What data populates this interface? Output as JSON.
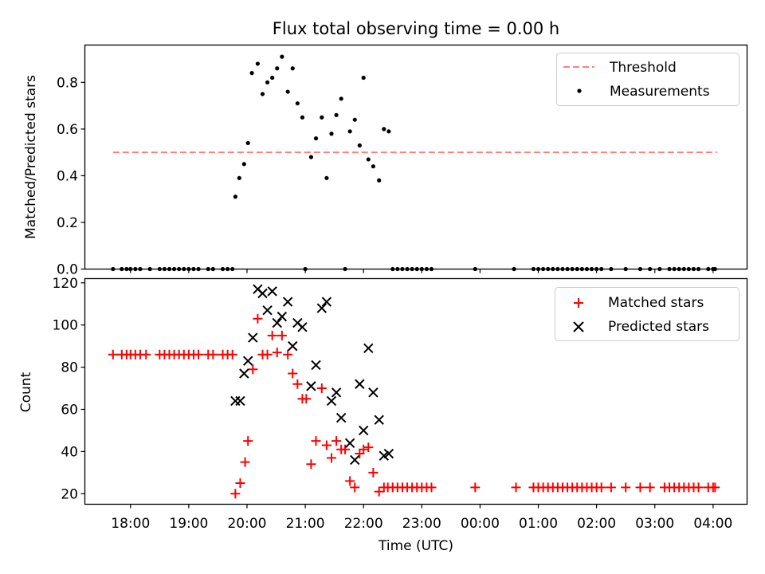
{
  "chart_data": [
    {
      "type": "scatter",
      "title": "Flux total observing time = 0.00 h",
      "xlabel": "",
      "ylabel": "Matched/Predicted stars",
      "x_is_time": true,
      "xlim": [
        "17:13",
        "04:35"
      ],
      "ylim": [
        0,
        0.96
      ],
      "yticks": [
        0.0,
        0.2,
        0.4,
        0.6,
        0.8
      ],
      "ytick_labels": [
        "0.0",
        "0.2",
        "0.4",
        "0.6",
        "0.8"
      ],
      "threshold": {
        "name": "Threshold",
        "value": 0.5,
        "x_range": [
          "17:42",
          "04:04"
        ],
        "color": "#ff7f7f",
        "style": "dashed"
      },
      "legend": {
        "position": "top-right",
        "entries": [
          "Threshold",
          "Measurements"
        ]
      },
      "series": [
        {
          "name": "Measurements",
          "marker": "dot",
          "color": "#000000",
          "points": [
            [
              "17:42",
              0
            ],
            [
              "17:51",
              0
            ],
            [
              "17:56",
              0
            ],
            [
              "18:00",
              0
            ],
            [
              "18:05",
              0
            ],
            [
              "18:10",
              0
            ],
            [
              "18:20",
              0
            ],
            [
              "18:30",
              0
            ],
            [
              "18:35",
              0
            ],
            [
              "18:40",
              0
            ],
            [
              "18:45",
              0
            ],
            [
              "18:50",
              0
            ],
            [
              "18:55",
              0
            ],
            [
              "19:00",
              0
            ],
            [
              "19:05",
              0
            ],
            [
              "19:10",
              0
            ],
            [
              "19:20",
              0
            ],
            [
              "19:25",
              0
            ],
            [
              "19:35",
              0
            ],
            [
              "19:40",
              0
            ],
            [
              "19:45",
              0
            ],
            [
              "19:48",
              0.31
            ],
            [
              "19:52",
              0.39
            ],
            [
              "19:57",
              0.45
            ],
            [
              "20:01",
              0.54
            ],
            [
              "20:05",
              0.84
            ],
            [
              "20:11",
              0.88
            ],
            [
              "20:16",
              0.75
            ],
            [
              "20:21",
              0.8
            ],
            [
              "20:26",
              0.82
            ],
            [
              "20:31",
              0.86
            ],
            [
              "20:36",
              0.91
            ],
            [
              "20:42",
              0.76
            ],
            [
              "20:47",
              0.86
            ],
            [
              "20:52",
              0.71
            ],
            [
              "20:57",
              0.65
            ],
            [
              "21:06",
              0.48
            ],
            [
              "21:11",
              0.56
            ],
            [
              "21:17",
              0.65
            ],
            [
              "21:22",
              0.39
            ],
            [
              "21:27",
              0.58
            ],
            [
              "21:32",
              0.66
            ],
            [
              "21:37",
              0.73
            ],
            [
              "21:46",
              0.59
            ],
            [
              "21:51",
              0.64
            ],
            [
              "21:56",
              0.53
            ],
            [
              "22:00",
              0.82
            ],
            [
              "22:05",
              0.47
            ],
            [
              "22:10",
              0.44
            ],
            [
              "22:16",
              0.38
            ],
            [
              "22:21",
              0.6
            ],
            [
              "22:26",
              0.59
            ],
            [
              "21:00",
              0
            ],
            [
              "21:41",
              0
            ],
            [
              "22:30",
              0
            ],
            [
              "22:35",
              0
            ],
            [
              "22:40",
              0
            ],
            [
              "22:45",
              0
            ],
            [
              "22:50",
              0
            ],
            [
              "22:55",
              0
            ],
            [
              "23:00",
              0
            ],
            [
              "23:05",
              0
            ],
            [
              "23:10",
              0
            ],
            [
              "23:55",
              0
            ],
            [
              "00:35",
              0
            ],
            [
              "00:55",
              0
            ],
            [
              "01:00",
              0
            ],
            [
              "01:05",
              0
            ],
            [
              "01:10",
              0
            ],
            [
              "01:15",
              0
            ],
            [
              "01:20",
              0
            ],
            [
              "01:25",
              0
            ],
            [
              "01:30",
              0
            ],
            [
              "01:35",
              0
            ],
            [
              "01:40",
              0
            ],
            [
              "01:45",
              0
            ],
            [
              "01:50",
              0
            ],
            [
              "01:55",
              0
            ],
            [
              "02:00",
              0
            ],
            [
              "02:05",
              0
            ],
            [
              "02:15",
              0
            ],
            [
              "02:30",
              0
            ],
            [
              "02:45",
              0
            ],
            [
              "02:55",
              0
            ],
            [
              "03:05",
              0
            ],
            [
              "03:15",
              0
            ],
            [
              "03:20",
              0
            ],
            [
              "03:25",
              0
            ],
            [
              "03:30",
              0
            ],
            [
              "03:35",
              0
            ],
            [
              "03:40",
              0
            ],
            [
              "03:45",
              0
            ],
            [
              "03:55",
              0
            ],
            [
              "04:00",
              0
            ],
            [
              "04:02",
              0
            ]
          ]
        }
      ]
    },
    {
      "type": "scatter",
      "title": "",
      "xlabel": "Time (UTC)",
      "ylabel": "Count",
      "x_is_time": true,
      "xlim": [
        "17:13",
        "04:35"
      ],
      "ylim": [
        15,
        122
      ],
      "yticks": [
        20,
        40,
        60,
        80,
        100,
        120
      ],
      "ytick_labels": [
        "20",
        "40",
        "60",
        "80",
        "100",
        "120"
      ],
      "xticks": [
        "18:00",
        "19:00",
        "20:00",
        "21:00",
        "22:00",
        "23:00",
        "00:00",
        "01:00",
        "02:00",
        "03:00",
        "04:00"
      ],
      "xtick_labels": [
        "18:00",
        "19:00",
        "20:00",
        "21:00",
        "22:00",
        "23:00",
        "00:00",
        "01:00",
        "02:00",
        "03:00",
        "04:00"
      ],
      "legend": {
        "position": "top-right",
        "entries": [
          "Matched stars",
          "Predicted stars"
        ]
      },
      "series": [
        {
          "name": "Matched stars",
          "marker": "plus",
          "color": "#ff0000",
          "points": [
            [
              "17:42",
              86
            ],
            [
              "17:51",
              86
            ],
            [
              "17:56",
              86
            ],
            [
              "18:00",
              86
            ],
            [
              "18:05",
              86
            ],
            [
              "18:10",
              86
            ],
            [
              "18:16",
              86
            ],
            [
              "18:30",
              86
            ],
            [
              "18:35",
              86
            ],
            [
              "18:40",
              86
            ],
            [
              "18:45",
              86
            ],
            [
              "18:50",
              86
            ],
            [
              "18:55",
              86
            ],
            [
              "19:00",
              86
            ],
            [
              "19:05",
              86
            ],
            [
              "19:10",
              86
            ],
            [
              "19:20",
              86
            ],
            [
              "19:25",
              86
            ],
            [
              "19:35",
              86
            ],
            [
              "19:40",
              86
            ],
            [
              "19:45",
              86
            ],
            [
              "19:48",
              20
            ],
            [
              "19:53",
              25
            ],
            [
              "19:58",
              35
            ],
            [
              "20:01",
              45
            ],
            [
              "20:06",
              79
            ],
            [
              "20:11",
              103
            ],
            [
              "20:16",
              86
            ],
            [
              "20:21",
              86
            ],
            [
              "20:26",
              95
            ],
            [
              "20:31",
              87
            ],
            [
              "20:36",
              95
            ],
            [
              "20:42",
              86
            ],
            [
              "20:47",
              77
            ],
            [
              "20:52",
              72
            ],
            [
              "20:57",
              65
            ],
            [
              "21:01",
              65
            ],
            [
              "21:06",
              34
            ],
            [
              "21:11",
              45
            ],
            [
              "21:17",
              70
            ],
            [
              "21:22",
              43
            ],
            [
              "21:27",
              37
            ],
            [
              "21:32",
              45
            ],
            [
              "21:37",
              41
            ],
            [
              "21:41",
              41
            ],
            [
              "21:46",
              26
            ],
            [
              "21:51",
              23
            ],
            [
              "21:56",
              39
            ],
            [
              "22:00",
              41
            ],
            [
              "22:05",
              42
            ],
            [
              "22:10",
              30
            ],
            [
              "22:16",
              21
            ],
            [
              "22:21",
              23
            ],
            [
              "22:25",
              23
            ],
            [
              "22:30",
              23
            ],
            [
              "22:35",
              23
            ],
            [
              "22:40",
              23
            ],
            [
              "22:45",
              23
            ],
            [
              "22:50",
              23
            ],
            [
              "22:55",
              23
            ],
            [
              "23:00",
              23
            ],
            [
              "23:05",
              23
            ],
            [
              "23:10",
              23
            ],
            [
              "23:55",
              23
            ],
            [
              "00:37",
              23
            ],
            [
              "00:55",
              23
            ],
            [
              "01:00",
              23
            ],
            [
              "01:05",
              23
            ],
            [
              "01:10",
              23
            ],
            [
              "01:15",
              23
            ],
            [
              "01:20",
              23
            ],
            [
              "01:25",
              23
            ],
            [
              "01:30",
              23
            ],
            [
              "01:35",
              23
            ],
            [
              "01:40",
              23
            ],
            [
              "01:45",
              23
            ],
            [
              "01:50",
              23
            ],
            [
              "01:55",
              23
            ],
            [
              "02:00",
              23
            ],
            [
              "02:05",
              23
            ],
            [
              "02:15",
              23
            ],
            [
              "02:30",
              23
            ],
            [
              "02:45",
              23
            ],
            [
              "02:55",
              23
            ],
            [
              "03:10",
              23
            ],
            [
              "03:15",
              23
            ],
            [
              "03:20",
              23
            ],
            [
              "03:25",
              23
            ],
            [
              "03:30",
              23
            ],
            [
              "03:35",
              23
            ],
            [
              "03:40",
              23
            ],
            [
              "03:45",
              23
            ],
            [
              "03:55",
              23
            ],
            [
              "04:00",
              23
            ],
            [
              "04:02",
              23
            ]
          ]
        },
        {
          "name": "Predicted stars",
          "marker": "cross",
          "color": "#000000",
          "points": [
            [
              "19:48",
              64
            ],
            [
              "19:53",
              64
            ],
            [
              "19:57",
              77
            ],
            [
              "20:01",
              83
            ],
            [
              "20:06",
              94
            ],
            [
              "20:11",
              117
            ],
            [
              "20:16",
              115
            ],
            [
              "20:21",
              107
            ],
            [
              "20:26",
              116
            ],
            [
              "20:31",
              101
            ],
            [
              "20:36",
              104
            ],
            [
              "20:42",
              111
            ],
            [
              "20:47",
              90
            ],
            [
              "20:52",
              101
            ],
            [
              "20:57",
              99
            ],
            [
              "21:06",
              71
            ],
            [
              "21:11",
              81
            ],
            [
              "21:17",
              108
            ],
            [
              "21:22",
              111
            ],
            [
              "21:27",
              64
            ],
            [
              "21:32",
              68
            ],
            [
              "21:37",
              56
            ],
            [
              "21:46",
              44
            ],
            [
              "21:51",
              36
            ],
            [
              "21:56",
              72
            ],
            [
              "22:00",
              50
            ],
            [
              "22:05",
              89
            ],
            [
              "22:10",
              68
            ],
            [
              "22:16",
              55
            ],
            [
              "22:21",
              38
            ],
            [
              "22:26",
              39
            ]
          ]
        }
      ]
    }
  ]
}
